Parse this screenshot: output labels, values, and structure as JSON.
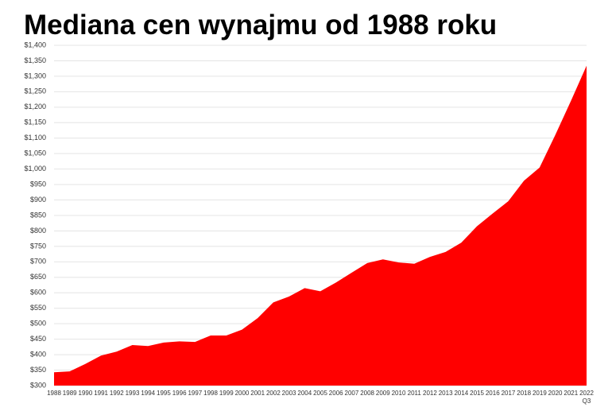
{
  "chart_data": {
    "type": "area",
    "title": "Mediana cen wynajmu od 1988 roku",
    "categories": [
      "1988",
      "1989",
      "1990",
      "1991",
      "1992",
      "1993",
      "1994",
      "1995",
      "1996",
      "1997",
      "1998",
      "1999",
      "2000",
      "2001",
      "2002",
      "2003",
      "2004",
      "2005",
      "2006",
      "2007",
      "2008",
      "2009",
      "2010",
      "2011",
      "2012",
      "2013",
      "2014",
      "2015",
      "2016",
      "2017",
      "2018",
      "2019",
      "2020",
      "2021",
      "2022 Q3"
    ],
    "values": [
      343,
      346,
      370,
      397,
      410,
      431,
      428,
      439,
      443,
      441,
      462,
      462,
      481,
      518,
      569,
      588,
      615,
      605,
      633,
      665,
      696,
      708,
      698,
      694,
      716,
      732,
      762,
      815,
      856,
      896,
      962,
      1005,
      1110,
      1220,
      1334
    ],
    "color": "#ff0000",
    "ylim": [
      300,
      1400
    ],
    "yticks": [
      {
        "value": 300,
        "label": "$300"
      },
      {
        "value": 350,
        "label": "$350"
      },
      {
        "value": 400,
        "label": "$400"
      },
      {
        "value": 450,
        "label": "$450"
      },
      {
        "value": 500,
        "label": "$500"
      },
      {
        "value": 550,
        "label": "$550"
      },
      {
        "value": 600,
        "label": "$600"
      },
      {
        "value": 650,
        "label": "$650"
      },
      {
        "value": 700,
        "label": "$700"
      },
      {
        "value": 750,
        "label": "$750"
      },
      {
        "value": 800,
        "label": "$800"
      },
      {
        "value": 850,
        "label": "$850"
      },
      {
        "value": 900,
        "label": "$900"
      },
      {
        "value": 950,
        "label": "$950"
      },
      {
        "value": 1000,
        "label": "$1,000"
      },
      {
        "value": 1050,
        "label": "$1,050"
      },
      {
        "value": 1100,
        "label": "$1,100"
      },
      {
        "value": 1150,
        "label": "$1,150"
      },
      {
        "value": 1200,
        "label": "$1,200"
      },
      {
        "value": 1250,
        "label": "$1,250"
      },
      {
        "value": 1300,
        "label": "$1,300"
      },
      {
        "value": 1350,
        "label": "$1,350"
      },
      {
        "value": 1400,
        "label": "$1,400"
      }
    ],
    "grid": true
  }
}
